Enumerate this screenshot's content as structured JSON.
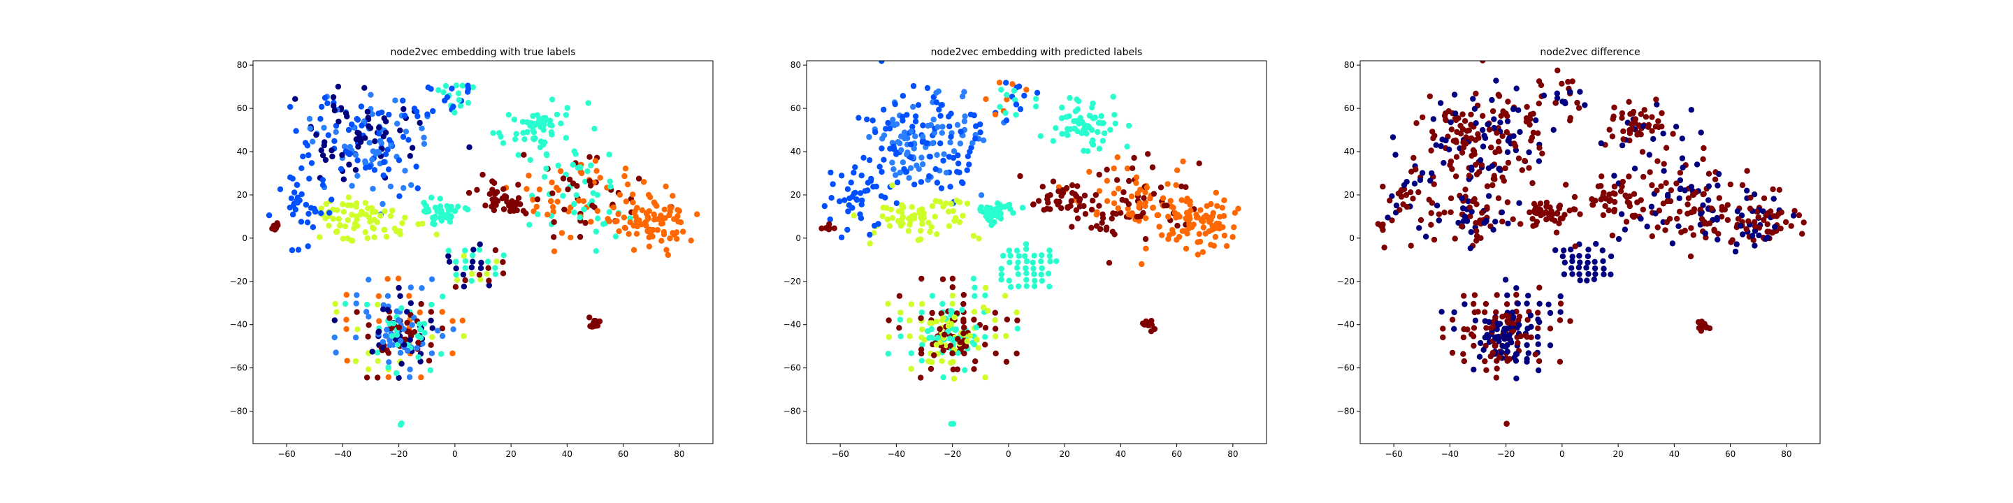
{
  "chart_data": [
    {
      "type": "scatter",
      "title": "node2vec embedding with true labels",
      "xlabel": "",
      "ylabel": "",
      "xlim": [
        -72,
        92
      ],
      "ylim": [
        -95,
        82
      ],
      "xticks": [
        -60,
        -40,
        -20,
        0,
        20,
        40,
        60,
        80
      ],
      "yticks": [
        -80,
        -60,
        -40,
        -20,
        0,
        20,
        40,
        60,
        80
      ],
      "grid": false,
      "colormap": "jet",
      "palette": [
        "#00007f",
        "#0050ff",
        "#2a7fff",
        "#29ffce",
        "#ceff29",
        "#ff6800",
        "#7f0000"
      ],
      "clusters": [
        {
          "cx": -20,
          "cy": -42,
          "sx": 11,
          "sy": 11,
          "n": 340,
          "dist": "grid",
          "step": 3.8,
          "colors": [
            0,
            3,
            4,
            5,
            6,
            2
          ]
        },
        {
          "cx": -20,
          "cy": -45,
          "sx": 5,
          "sy": 6,
          "n": 90,
          "dist": "gauss",
          "colors": [
            0,
            3,
            6,
            2
          ]
        },
        {
          "cx": 7,
          "cy": -13,
          "sx": 5,
          "sy": 4,
          "n": 110,
          "dist": "grid",
          "step": 2.8,
          "colors": [
            0,
            3,
            6,
            4
          ]
        },
        {
          "cx": 28,
          "cy": 52,
          "sx": 7,
          "sy": 6,
          "n": 60,
          "dist": "gauss",
          "colors": [
            3
          ]
        },
        {
          "cx": 45,
          "cy": 17,
          "sx": 12,
          "sy": 10,
          "n": 120,
          "dist": "gauss",
          "colors": [
            5,
            6,
            3
          ]
        },
        {
          "cx": 70,
          "cy": 8,
          "sx": 7,
          "sy": 7,
          "n": 80,
          "dist": "gauss",
          "colors": [
            5
          ]
        },
        {
          "cx": -30,
          "cy": 45,
          "sx": 12,
          "sy": 12,
          "n": 180,
          "dist": "gauss",
          "colors": [
            1,
            2,
            0
          ]
        },
        {
          "cx": -32,
          "cy": 9,
          "sx": 10,
          "sy": 5,
          "n": 70,
          "dist": "gauss",
          "colors": [
            4
          ]
        },
        {
          "cx": -5,
          "cy": 12,
          "sx": 4,
          "sy": 3,
          "n": 40,
          "dist": "gauss",
          "colors": [
            3
          ]
        },
        {
          "cx": 18,
          "cy": 18,
          "sx": 6,
          "sy": 5,
          "n": 40,
          "dist": "gauss",
          "colors": [
            6
          ]
        },
        {
          "cx": -55,
          "cy": 17,
          "sx": 5,
          "sy": 10,
          "n": 40,
          "dist": "gauss",
          "colors": [
            1
          ]
        },
        {
          "cx": 0,
          "cy": 65,
          "sx": 5,
          "sy": 5,
          "n": 25,
          "dist": "gauss",
          "colors": [
            1,
            3
          ]
        },
        {
          "cx": 50,
          "cy": -40,
          "sx": 1.5,
          "sy": 1.5,
          "n": 12,
          "dist": "gauss",
          "colors": [
            6
          ]
        },
        {
          "cx": -64,
          "cy": 5,
          "sx": 1,
          "sy": 1,
          "n": 6,
          "dist": "gauss",
          "colors": [
            6
          ]
        },
        {
          "cx": -20,
          "cy": -86,
          "sx": 0.5,
          "sy": 0.5,
          "n": 2,
          "dist": "gauss",
          "colors": [
            3
          ]
        }
      ]
    },
    {
      "type": "scatter",
      "title": "node2vec embedding with predicted labels",
      "xlabel": "",
      "ylabel": "",
      "xlim": [
        -72,
        92
      ],
      "ylim": [
        -95,
        82
      ],
      "xticks": [
        -60,
        -40,
        -20,
        0,
        20,
        40,
        60,
        80
      ],
      "yticks": [
        -80,
        -60,
        -40,
        -20,
        0,
        20,
        40,
        60,
        80
      ],
      "grid": false,
      "colormap": "jet",
      "palette": [
        "#00007f",
        "#0050ff",
        "#2a7fff",
        "#29ffce",
        "#ceff29",
        "#ff6800",
        "#7f0000"
      ],
      "clusters": [
        {
          "cx": -20,
          "cy": -42,
          "sx": 11,
          "sy": 11,
          "n": 340,
          "dist": "grid",
          "step": 3.8,
          "colors": [
            3,
            4,
            6
          ]
        },
        {
          "cx": -20,
          "cy": -45,
          "sx": 5,
          "sy": 6,
          "n": 90,
          "dist": "gauss",
          "colors": [
            3,
            6,
            4
          ]
        },
        {
          "cx": 7,
          "cy": -13,
          "sx": 5,
          "sy": 4,
          "n": 110,
          "dist": "grid",
          "step": 2.8,
          "colors": [
            3
          ]
        },
        {
          "cx": 28,
          "cy": 52,
          "sx": 7,
          "sy": 6,
          "n": 60,
          "dist": "gauss",
          "colors": [
            3
          ]
        },
        {
          "cx": 45,
          "cy": 17,
          "sx": 12,
          "sy": 10,
          "n": 120,
          "dist": "gauss",
          "colors": [
            5,
            6
          ]
        },
        {
          "cx": 70,
          "cy": 8,
          "sx": 7,
          "sy": 7,
          "n": 80,
          "dist": "gauss",
          "colors": [
            5
          ]
        },
        {
          "cx": -30,
          "cy": 45,
          "sx": 12,
          "sy": 12,
          "n": 180,
          "dist": "gauss",
          "colors": [
            1,
            2
          ]
        },
        {
          "cx": -32,
          "cy": 9,
          "sx": 10,
          "sy": 5,
          "n": 70,
          "dist": "gauss",
          "colors": [
            4
          ]
        },
        {
          "cx": -5,
          "cy": 12,
          "sx": 4,
          "sy": 3,
          "n": 40,
          "dist": "gauss",
          "colors": [
            3
          ]
        },
        {
          "cx": 18,
          "cy": 18,
          "sx": 6,
          "sy": 5,
          "n": 40,
          "dist": "gauss",
          "colors": [
            6
          ]
        },
        {
          "cx": -55,
          "cy": 17,
          "sx": 5,
          "sy": 10,
          "n": 40,
          "dist": "gauss",
          "colors": [
            1
          ]
        },
        {
          "cx": 0,
          "cy": 65,
          "sx": 5,
          "sy": 5,
          "n": 25,
          "dist": "gauss",
          "colors": [
            1,
            3,
            5
          ]
        },
        {
          "cx": 50,
          "cy": -40,
          "sx": 1.5,
          "sy": 1.5,
          "n": 12,
          "dist": "gauss",
          "colors": [
            6
          ]
        },
        {
          "cx": -64,
          "cy": 5,
          "sx": 1,
          "sy": 1,
          "n": 6,
          "dist": "gauss",
          "colors": [
            6
          ]
        },
        {
          "cx": -20,
          "cy": -86,
          "sx": 0.5,
          "sy": 0.5,
          "n": 2,
          "dist": "gauss",
          "colors": [
            3
          ]
        }
      ]
    },
    {
      "type": "scatter",
      "title": "node2vec difference",
      "xlabel": "",
      "ylabel": "",
      "xlim": [
        -72,
        92
      ],
      "ylim": [
        -95,
        82
      ],
      "xticks": [
        -60,
        -40,
        -20,
        0,
        20,
        40,
        60,
        80
      ],
      "yticks": [
        -80,
        -60,
        -40,
        -20,
        0,
        20,
        40,
        60,
        80
      ],
      "grid": false,
      "colormap": "jet",
      "palette": [
        "#00007f",
        "#7f0000"
      ],
      "clusters": [
        {
          "cx": -20,
          "cy": -42,
          "sx": 11,
          "sy": 11,
          "n": 340,
          "dist": "grid",
          "step": 3.8,
          "colors": [
            0,
            1
          ]
        },
        {
          "cx": -20,
          "cy": -45,
          "sx": 5,
          "sy": 6,
          "n": 90,
          "dist": "gauss",
          "colors": [
            0,
            1
          ]
        },
        {
          "cx": 7,
          "cy": -13,
          "sx": 5,
          "sy": 4,
          "n": 110,
          "dist": "grid",
          "step": 2.8,
          "colors": [
            0
          ]
        },
        {
          "cx": 28,
          "cy": 52,
          "sx": 7,
          "sy": 6,
          "n": 60,
          "dist": "gauss",
          "colors": [
            1,
            1,
            0
          ]
        },
        {
          "cx": 45,
          "cy": 17,
          "sx": 12,
          "sy": 10,
          "n": 120,
          "dist": "gauss",
          "colors": [
            1,
            1,
            0
          ]
        },
        {
          "cx": 70,
          "cy": 8,
          "sx": 7,
          "sy": 7,
          "n": 80,
          "dist": "gauss",
          "colors": [
            1,
            1,
            0
          ]
        },
        {
          "cx": -30,
          "cy": 45,
          "sx": 12,
          "sy": 12,
          "n": 180,
          "dist": "gauss",
          "colors": [
            1,
            1,
            0
          ]
        },
        {
          "cx": -32,
          "cy": 9,
          "sx": 10,
          "sy": 5,
          "n": 70,
          "dist": "gauss",
          "colors": [
            1,
            1,
            0
          ]
        },
        {
          "cx": -5,
          "cy": 12,
          "sx": 4,
          "sy": 3,
          "n": 40,
          "dist": "gauss",
          "colors": [
            1
          ]
        },
        {
          "cx": 18,
          "cy": 18,
          "sx": 6,
          "sy": 5,
          "n": 40,
          "dist": "gauss",
          "colors": [
            1
          ]
        },
        {
          "cx": -55,
          "cy": 17,
          "sx": 5,
          "sy": 10,
          "n": 40,
          "dist": "gauss",
          "colors": [
            1,
            0
          ]
        },
        {
          "cx": 0,
          "cy": 65,
          "sx": 5,
          "sy": 5,
          "n": 25,
          "dist": "gauss",
          "colors": [
            1,
            0
          ]
        },
        {
          "cx": 50,
          "cy": -40,
          "sx": 1.5,
          "sy": 1.5,
          "n": 12,
          "dist": "gauss",
          "colors": [
            1
          ]
        },
        {
          "cx": -64,
          "cy": 5,
          "sx": 1,
          "sy": 1,
          "n": 6,
          "dist": "gauss",
          "colors": [
            1
          ]
        },
        {
          "cx": -20,
          "cy": -86,
          "sx": 0.5,
          "sy": 0.5,
          "n": 2,
          "dist": "gauss",
          "colors": [
            1
          ]
        }
      ]
    }
  ]
}
